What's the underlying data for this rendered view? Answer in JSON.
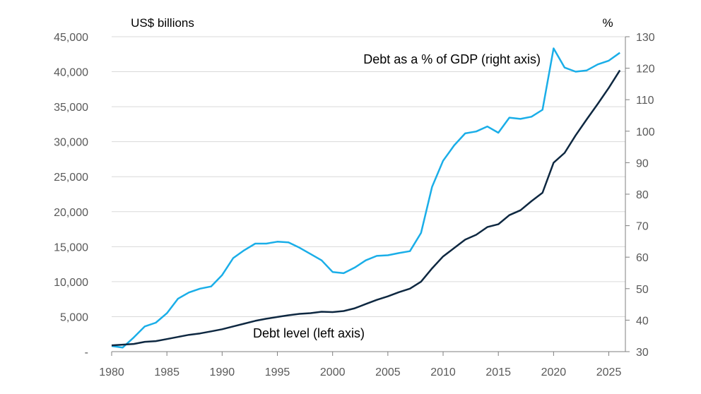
{
  "chart_data": {
    "type": "line",
    "left_axis": {
      "unit_label": "US$ billions",
      "min": 0,
      "max": 45000,
      "ticks": [
        0,
        5000,
        10000,
        15000,
        20000,
        25000,
        30000,
        35000,
        40000,
        45000
      ],
      "tick_labels": [
        "-",
        "5,000",
        "10,000",
        "15,000",
        "20,000",
        "25,000",
        "30,000",
        "35,000",
        "40,000",
        "45,000"
      ]
    },
    "right_axis": {
      "unit_label": "%",
      "min": 30,
      "max": 130,
      "ticks": [
        30,
        40,
        50,
        60,
        70,
        80,
        90,
        100,
        110,
        120,
        130
      ],
      "tick_labels": [
        "30",
        "40",
        "50",
        "60",
        "70",
        "80",
        "90",
        "100",
        "110",
        "120",
        "130"
      ]
    },
    "x_axis": {
      "min": 1980,
      "max": 2026.5,
      "ticks": [
        1980,
        1985,
        1990,
        1995,
        2000,
        2005,
        2010,
        2015,
        2020,
        2025
      ],
      "tick_labels": [
        "1980",
        "1985",
        "1990",
        "1995",
        "2000",
        "2005",
        "2010",
        "2015",
        "2020",
        "2025"
      ]
    },
    "grid": "horizontal",
    "series": [
      {
        "name": "Debt as a % of GDP (right axis)",
        "axis": "right",
        "color": "#1aaee8",
        "x": [
          1980,
          1981,
          1982,
          1983,
          1984,
          1985,
          1986,
          1987,
          1988,
          1989,
          1990,
          1991,
          1992,
          1993,
          1994,
          1995,
          1996,
          1997,
          1998,
          1999,
          2000,
          2001,
          2002,
          2003,
          2004,
          2005,
          2006,
          2007,
          2008,
          2009,
          2010,
          2011,
          2012,
          2013,
          2014,
          2015,
          2016,
          2017,
          2018,
          2019,
          2020,
          2021,
          2022,
          2023,
          2024,
          2025,
          2026
        ],
        "values": [
          31.8,
          31.3,
          34.5,
          38,
          39.2,
          42.2,
          46.8,
          48.8,
          50,
          50.7,
          54.3,
          59.7,
          62.2,
          64.3,
          64.3,
          64.9,
          64.7,
          63,
          61,
          59,
          55.3,
          54.9,
          56.7,
          59,
          60.4,
          60.6,
          61.3,
          61.9,
          67.7,
          82.3,
          90.6,
          95.5,
          99.3,
          99.9,
          101.5,
          99.5,
          104.3,
          103.9,
          104.6,
          106.8,
          126.3,
          120.2,
          118.9,
          119.3,
          121.2,
          122.4,
          124.9
        ]
      },
      {
        "name": "Debt level (left axis)",
        "axis": "left",
        "color": "#0e2841",
        "x": [
          1980,
          1981,
          1982,
          1983,
          1984,
          1985,
          1986,
          1987,
          1988,
          1989,
          1990,
          1991,
          1992,
          1993,
          1994,
          1995,
          1996,
          1997,
          1998,
          1999,
          2000,
          2001,
          2002,
          2003,
          2004,
          2005,
          2006,
          2007,
          2008,
          2009,
          2010,
          2011,
          2012,
          2013,
          2014,
          2015,
          2016,
          2017,
          2018,
          2019,
          2020,
          2021,
          2022,
          2023,
          2024,
          2025,
          2026
        ],
        "values": [
          900,
          1000,
          1100,
          1400,
          1500,
          1800,
          2100,
          2400,
          2600,
          2900,
          3200,
          3600,
          4000,
          4400,
          4700,
          4950,
          5200,
          5400,
          5500,
          5700,
          5650,
          5800,
          6200,
          6800,
          7400,
          7900,
          8500,
          9000,
          10000,
          11900,
          13600,
          14800,
          16000,
          16700,
          17800,
          18200,
          19500,
          20200,
          21500,
          22700,
          27000,
          28400,
          30900,
          33200,
          35400,
          37700,
          40200
        ]
      }
    ],
    "annotations": {
      "pct_label": "Debt as a % of GDP (right axis)",
      "level_label": "Debt level (left axis)"
    }
  }
}
